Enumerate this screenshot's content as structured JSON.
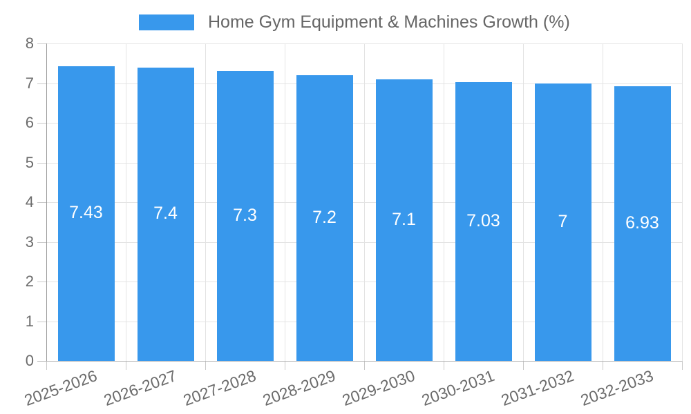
{
  "chart_data": {
    "type": "bar",
    "title": "Home Gym Equipment & Machines Growth (%)",
    "legend_position": "top",
    "categories": [
      "2025-2026",
      "2026-2027",
      "2027-2028",
      "2028-2029",
      "2029-2030",
      "2030-2031",
      "2031-2032",
      "2032-2033"
    ],
    "values": [
      7.43,
      7.4,
      7.3,
      7.2,
      7.1,
      7.03,
      7,
      6.93
    ],
    "bar_labels": [
      "7.43",
      "7.4",
      "7.3",
      "7.2",
      "7.1",
      "7.03",
      "7",
      "6.93"
    ],
    "xlabel": "",
    "ylabel": "",
    "ylim": [
      0,
      8
    ],
    "y_ticks": [
      "0",
      "1",
      "2",
      "3",
      "4",
      "5",
      "6",
      "7",
      "8"
    ],
    "grid": "on",
    "bar_color": "#3898ec",
    "bar_label_color": "#ffffff",
    "text_color": "#666666"
  }
}
